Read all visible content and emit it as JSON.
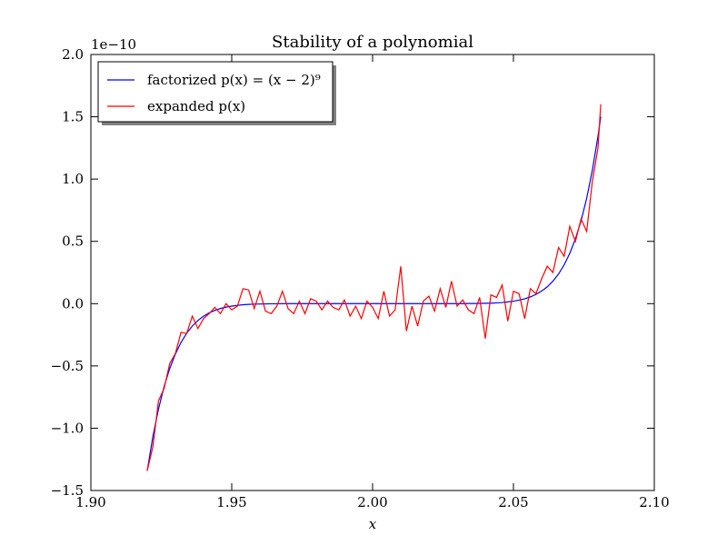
{
  "chart_data": {
    "type": "line",
    "title": "Stability of a polynomial",
    "x_label": "x",
    "offset_text": "1e−10",
    "x": [
      1.92,
      1.922,
      1.924,
      1.926,
      1.928,
      1.93,
      1.932,
      1.934,
      1.936,
      1.938,
      1.94,
      1.942,
      1.944,
      1.946,
      1.948,
      1.95,
      1.952,
      1.954,
      1.956,
      1.958,
      1.96,
      1.962,
      1.964,
      1.966,
      1.968,
      1.97,
      1.972,
      1.974,
      1.976,
      1.978,
      1.98,
      1.982,
      1.984,
      1.986,
      1.988,
      1.99,
      1.992,
      1.994,
      1.996,
      1.998,
      2.0,
      2.002,
      2.004,
      2.006,
      2.008,
      2.01,
      2.012,
      2.014,
      2.016,
      2.018,
      2.02,
      2.022,
      2.024,
      2.026,
      2.028,
      2.03,
      2.032,
      2.034,
      2.036,
      2.038,
      2.04,
      2.042,
      2.044,
      2.046,
      2.048,
      2.05,
      2.052,
      2.054,
      2.056,
      2.058,
      2.06,
      2.062,
      2.064,
      2.066,
      2.068,
      2.07,
      2.072,
      2.074,
      2.076,
      2.078,
      2.08,
      2.081
    ],
    "series": [
      {
        "name": "factorized p(x) = (x − 2)⁹",
        "color": "#0000ff",
        "values": [
          -1.342,
          -1.069,
          -0.846,
          -0.665,
          -0.52,
          -0.404,
          -0.311,
          -0.238,
          -0.18,
          -0.135,
          -0.101,
          -0.074,
          -0.054,
          -0.039,
          -0.028,
          -0.02,
          -0.014,
          -0.009,
          -0.006,
          -0.004,
          -0.003,
          -0.002,
          -0.001,
          -0.001,
          0,
          0,
          0,
          0,
          0,
          0,
          0,
          0,
          0,
          0,
          0,
          0,
          0,
          0,
          0,
          0,
          0,
          0,
          0,
          0,
          0,
          0,
          0,
          0,
          0,
          0,
          0,
          0,
          0,
          0,
          0,
          0,
          0,
          0.001,
          0.001,
          0.002,
          0.003,
          0.004,
          0.006,
          0.009,
          0.014,
          0.02,
          0.028,
          0.039,
          0.054,
          0.074,
          0.101,
          0.135,
          0.18,
          0.238,
          0.311,
          0.404,
          0.52,
          0.665,
          0.846,
          1.069,
          1.342,
          1.501
        ]
      },
      {
        "name": "expanded p(x)",
        "color": "#ff0000",
        "values": [
          -1.34,
          -1.15,
          -0.78,
          -0.68,
          -0.48,
          -0.4,
          -0.23,
          -0.24,
          -0.1,
          -0.2,
          -0.12,
          -0.08,
          -0.03,
          -0.08,
          0.0,
          -0.05,
          -0.02,
          0.12,
          0.11,
          -0.04,
          0.1,
          -0.06,
          -0.08,
          -0.02,
          0.1,
          -0.04,
          -0.08,
          0.02,
          -0.08,
          0.04,
          0.02,
          -0.05,
          0.02,
          -0.03,
          -0.05,
          0.03,
          -0.1,
          -0.02,
          -0.12,
          0.02,
          -0.03,
          -0.12,
          0.1,
          -0.1,
          -0.05,
          0.3,
          -0.22,
          -0.02,
          -0.18,
          0.02,
          0.06,
          -0.06,
          0.12,
          -0.03,
          0.18,
          -0.02,
          0.03,
          -0.05,
          -0.08,
          0.05,
          -0.28,
          0.07,
          0.05,
          0.15,
          -0.14,
          0.1,
          0.08,
          -0.12,
          0.12,
          0.08,
          0.2,
          0.3,
          0.25,
          0.45,
          0.38,
          0.62,
          0.5,
          0.68,
          0.58,
          0.98,
          1.25,
          1.6
        ]
      }
    ],
    "xlim": [
      1.9,
      2.1
    ],
    "xticks": [
      {
        "value": 1.9,
        "label": "1.90"
      },
      1.95,
      {
        "value": 2.0,
        "label": "2.00"
      },
      2.05,
      {
        "value": 2.1,
        "label": "2.10"
      }
    ],
    "ylim": [
      -1.5,
      2.0
    ],
    "yticks": [
      {
        "value": -1.5,
        "label": "−1.5"
      },
      {
        "value": -1.0,
        "label": "−1.0"
      },
      {
        "value": -0.5,
        "label": "−0.5"
      },
      {
        "value": 0,
        "label": "0.0"
      },
      0.5,
      {
        "value": 1,
        "label": "1.0"
      },
      1.5,
      {
        "value": 2,
        "label": "2.0"
      }
    ],
    "legend": "upper left"
  }
}
